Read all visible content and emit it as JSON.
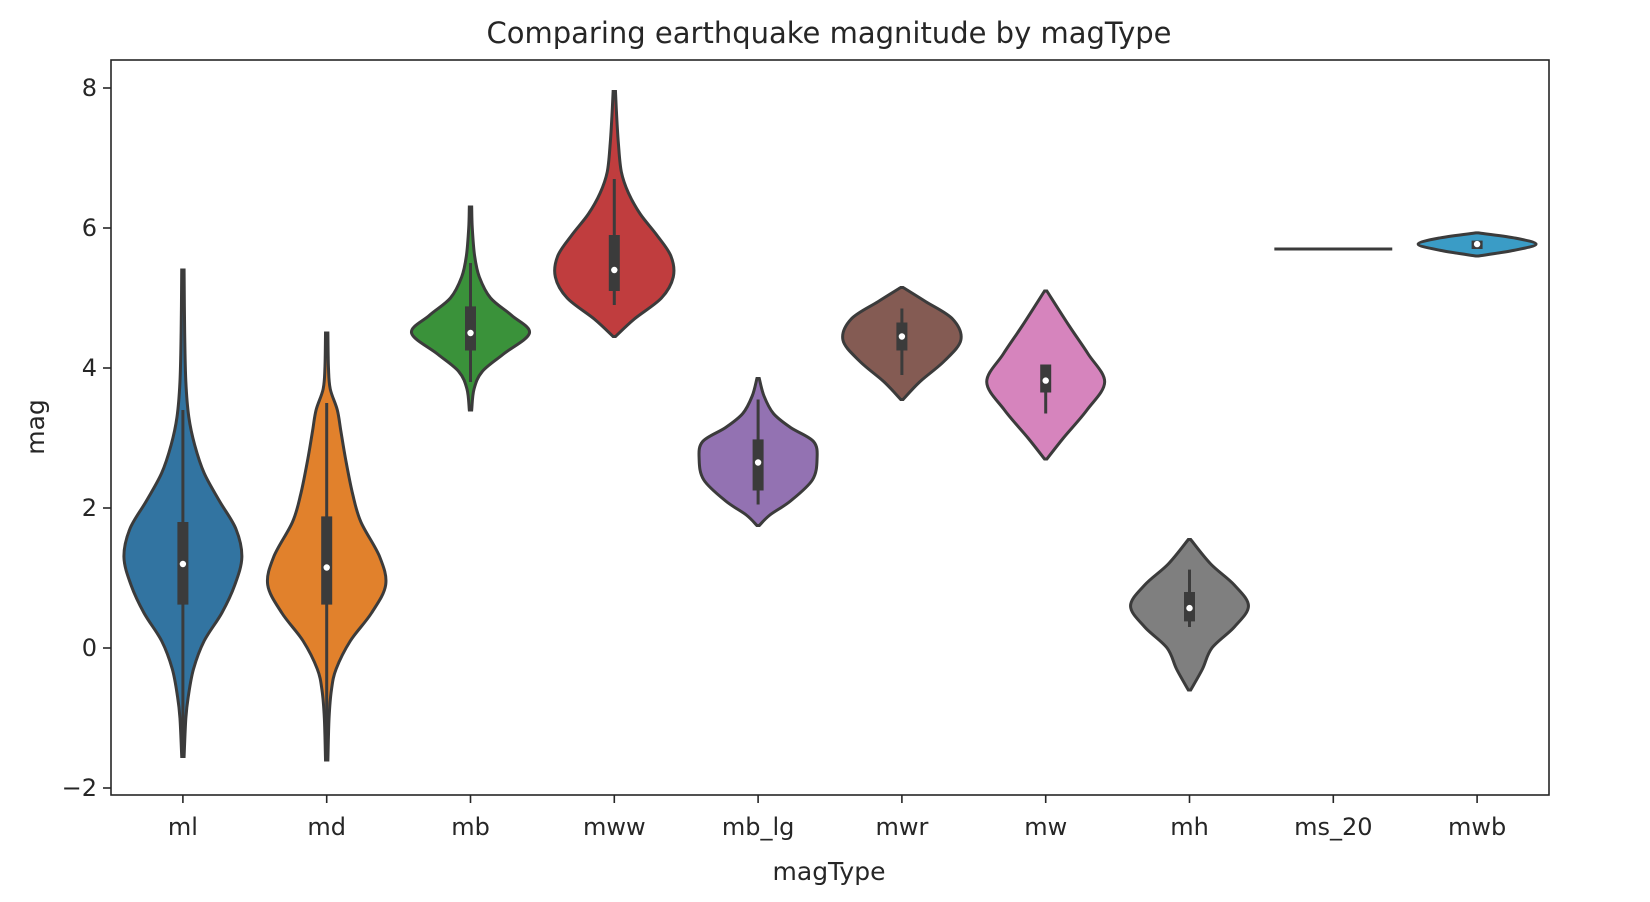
{
  "chart_data": {
    "type": "violin",
    "title": "Comparing earthquake magnitude by magType",
    "xlabel": "magType",
    "ylabel": "mag",
    "ylim": [
      -2.1,
      8.4
    ],
    "yticks": [
      -2,
      0,
      2,
      4,
      6,
      8
    ],
    "ytick_labels": [
      "−2",
      "0",
      "2",
      "4",
      "6",
      "8"
    ],
    "grid": false,
    "legend": "none",
    "categories": [
      "ml",
      "md",
      "mb",
      "mww",
      "mb_lg",
      "mwr",
      "mw",
      "mh",
      "ms_20",
      "mwb"
    ],
    "colors": [
      "#3274a1",
      "#e1812c",
      "#3a923a",
      "#c03d3e",
      "#9372b2",
      "#845b53",
      "#d684bd",
      "#7f7f7f",
      "#a9aa35",
      "#3a9cc6"
    ],
    "violins": [
      {
        "min": -1.55,
        "max": 5.4,
        "q1": 0.62,
        "median": 1.2,
        "q3": 1.8,
        "whisker_low": -1.55,
        "whisker_high": 3.4,
        "profile": [
          [
            -1.55,
            0.02
          ],
          [
            -1.0,
            0.05
          ],
          [
            -0.7,
            0.09
          ],
          [
            -0.3,
            0.18
          ],
          [
            0.1,
            0.36
          ],
          [
            0.5,
            0.66
          ],
          [
            0.9,
            0.88
          ],
          [
            1.3,
            1.0
          ],
          [
            1.7,
            0.9
          ],
          [
            2.1,
            0.62
          ],
          [
            2.5,
            0.36
          ],
          [
            2.9,
            0.2
          ],
          [
            3.3,
            0.1
          ],
          [
            3.8,
            0.05
          ],
          [
            4.5,
            0.03
          ],
          [
            5.4,
            0.02
          ]
        ]
      },
      {
        "min": -1.6,
        "max": 4.5,
        "q1": 0.62,
        "median": 1.15,
        "q3": 1.88,
        "whisker_low": -1.6,
        "whisker_high": 3.5,
        "profile": [
          [
            -1.6,
            0.02
          ],
          [
            -1.0,
            0.04
          ],
          [
            -0.6,
            0.08
          ],
          [
            -0.3,
            0.16
          ],
          [
            0.1,
            0.4
          ],
          [
            0.5,
            0.76
          ],
          [
            0.9,
            1.0
          ],
          [
            1.3,
            0.9
          ],
          [
            1.8,
            0.58
          ],
          [
            2.2,
            0.44
          ],
          [
            2.7,
            0.32
          ],
          [
            3.1,
            0.24
          ],
          [
            3.4,
            0.18
          ],
          [
            3.7,
            0.06
          ],
          [
            4.0,
            0.03
          ],
          [
            4.5,
            0.02
          ]
        ]
      },
      {
        "min": 3.4,
        "max": 6.3,
        "q1": 4.25,
        "median": 4.5,
        "q3": 4.88,
        "whisker_low": 3.8,
        "whisker_high": 5.5,
        "profile": [
          [
            3.4,
            0.02
          ],
          [
            3.7,
            0.06
          ],
          [
            3.95,
            0.2
          ],
          [
            4.2,
            0.56
          ],
          [
            4.5,
            1.0
          ],
          [
            4.75,
            0.7
          ],
          [
            5.0,
            0.34
          ],
          [
            5.3,
            0.15
          ],
          [
            5.6,
            0.07
          ],
          [
            6.0,
            0.03
          ],
          [
            6.3,
            0.02
          ]
        ]
      },
      {
        "min": 4.45,
        "max": 7.95,
        "q1": 5.1,
        "median": 5.4,
        "q3": 5.9,
        "whisker_low": 4.9,
        "whisker_high": 6.7,
        "profile": [
          [
            4.45,
            0.02
          ],
          [
            4.7,
            0.34
          ],
          [
            5.0,
            0.8
          ],
          [
            5.3,
            1.0
          ],
          [
            5.6,
            0.96
          ],
          [
            5.9,
            0.72
          ],
          [
            6.2,
            0.44
          ],
          [
            6.5,
            0.24
          ],
          [
            6.8,
            0.12
          ],
          [
            7.2,
            0.07
          ],
          [
            7.6,
            0.04
          ],
          [
            7.95,
            0.02
          ]
        ]
      },
      {
        "min": 1.75,
        "max": 3.85,
        "q1": 2.25,
        "median": 2.65,
        "q3": 2.98,
        "whisker_low": 2.05,
        "whisker_high": 3.55,
        "profile": [
          [
            1.75,
            0.02
          ],
          [
            1.9,
            0.2
          ],
          [
            2.1,
            0.55
          ],
          [
            2.4,
            0.92
          ],
          [
            2.7,
            1.0
          ],
          [
            2.95,
            0.94
          ],
          [
            3.15,
            0.55
          ],
          [
            3.35,
            0.26
          ],
          [
            3.6,
            0.1
          ],
          [
            3.85,
            0.02
          ]
        ]
      },
      {
        "min": 3.55,
        "max": 5.15,
        "q1": 4.25,
        "median": 4.45,
        "q3": 4.65,
        "whisker_low": 3.9,
        "whisker_high": 4.85,
        "profile": [
          [
            3.55,
            0.02
          ],
          [
            3.8,
            0.3
          ],
          [
            4.1,
            0.72
          ],
          [
            4.4,
            1.0
          ],
          [
            4.7,
            0.86
          ],
          [
            4.95,
            0.4
          ],
          [
            5.15,
            0.02
          ]
        ]
      },
      {
        "min": 2.7,
        "max": 5.1,
        "q1": 3.65,
        "median": 3.82,
        "q3": 4.05,
        "whisker_low": 3.35,
        "whisker_high": 4.05,
        "profile": [
          [
            2.7,
            0.02
          ],
          [
            3.0,
            0.3
          ],
          [
            3.4,
            0.7
          ],
          [
            3.8,
            1.0
          ],
          [
            4.2,
            0.72
          ],
          [
            4.6,
            0.4
          ],
          [
            5.1,
            0.02
          ]
        ]
      },
      {
        "min": -0.6,
        "max": 1.55,
        "q1": 0.38,
        "median": 0.57,
        "q3": 0.8,
        "whisker_low": 0.3,
        "whisker_high": 1.12,
        "profile": [
          [
            -0.6,
            0.02
          ],
          [
            -0.3,
            0.22
          ],
          [
            0.0,
            0.38
          ],
          [
            0.3,
            0.76
          ],
          [
            0.6,
            1.0
          ],
          [
            0.9,
            0.76
          ],
          [
            1.2,
            0.36
          ],
          [
            1.55,
            0.02
          ]
        ]
      },
      {
        "min": 5.7,
        "max": 5.7,
        "median": 5.7,
        "single_value": true
      },
      {
        "min": 5.6,
        "max": 5.93,
        "q1": 5.7,
        "median": 5.77,
        "q3": 5.82,
        "whisker_low": 5.7,
        "whisker_high": 5.82,
        "profile": [
          [
            5.6,
            0.02
          ],
          [
            5.68,
            0.62
          ],
          [
            5.77,
            1.0
          ],
          [
            5.86,
            0.62
          ],
          [
            5.93,
            0.02
          ]
        ]
      }
    ]
  }
}
